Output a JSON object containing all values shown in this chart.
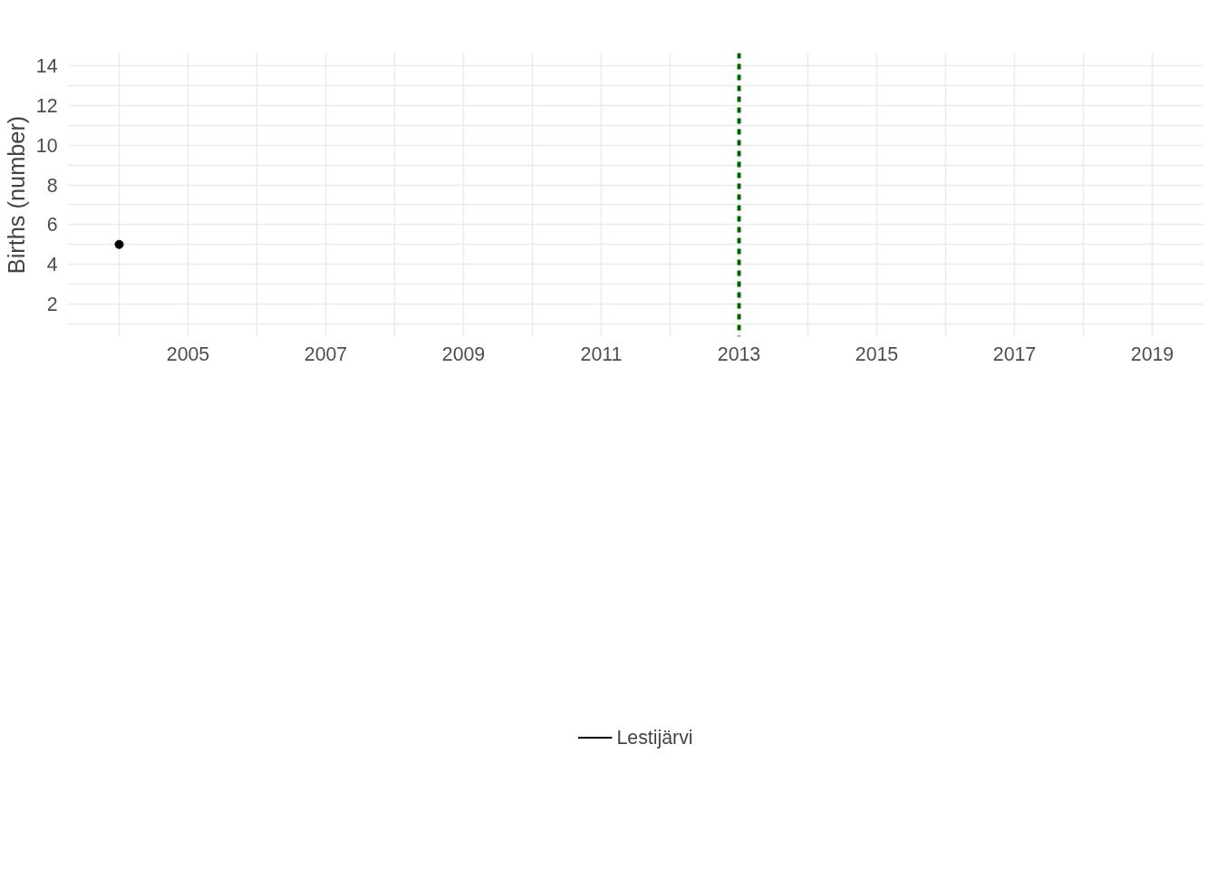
{
  "chart_data": {
    "type": "line",
    "ylabel": "Births (number)",
    "x": [
      2004
    ],
    "series": [
      {
        "name": "Lestijärvi",
        "color": "#000000",
        "values": [
          5
        ]
      }
    ],
    "marker": "circle",
    "xlim": [
      2003.25,
      2019.75
    ],
    "xticks": [
      {
        "value": 2004,
        "label": null
      },
      2005,
      {
        "value": 2006,
        "label": null
      },
      2007,
      {
        "value": 2008,
        "label": null
      },
      2009,
      {
        "value": 2010,
        "label": null
      },
      2011,
      {
        "value": 2012,
        "label": null
      },
      2013,
      {
        "value": 2014,
        "label": null
      },
      2015,
      {
        "value": 2016,
        "label": null
      },
      2017,
      {
        "value": 2018,
        "label": null
      },
      2019
    ],
    "ylim": [
      0.35,
      14.65
    ],
    "yticks": [
      {
        "value": 1,
        "label": null
      },
      2,
      {
        "value": 3,
        "label": null
      },
      4,
      {
        "value": 5,
        "label": null
      },
      6,
      {
        "value": 7,
        "label": null
      },
      8,
      {
        "value": 9,
        "label": null
      },
      10,
      {
        "value": 11,
        "label": null
      },
      12,
      {
        "value": 13,
        "label": null
      },
      14
    ],
    "ref_lines": [
      {
        "axis": "x",
        "value": 2013,
        "color": "#006400",
        "line_style": "dashed"
      }
    ],
    "grid": true,
    "legend": "bottom"
  }
}
